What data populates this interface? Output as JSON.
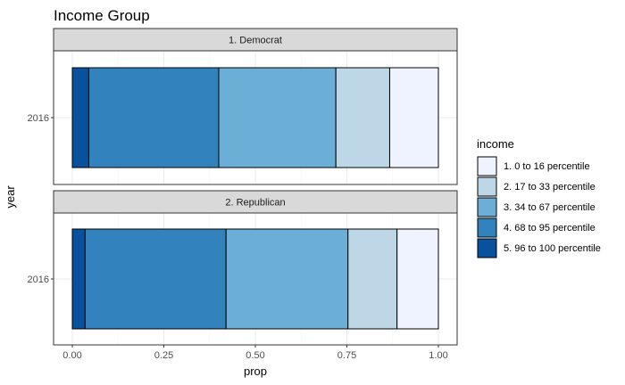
{
  "chart_data": {
    "type": "bar",
    "orientation": "horizontal",
    "stacked": true,
    "title": "Income Group",
    "xlabel": "prop",
    "ylabel": "year",
    "xlim": [
      0,
      1
    ],
    "x_ticks": [
      "0.00",
      "0.25",
      "0.50",
      "0.75",
      "1.00"
    ],
    "x_tick_values": [
      0,
      0.25,
      0.5,
      0.75,
      1.0
    ],
    "grid": true,
    "legend": {
      "title": "income",
      "placement": "right",
      "entries": [
        {
          "label": "1. 0 to 16 percentile",
          "color": "#eff3ff"
        },
        {
          "label": "2. 17 to 33 percentile",
          "color": "#bdd7e7"
        },
        {
          "label": "3. 34 to 67 percentile",
          "color": "#6baed6"
        },
        {
          "label": "4. 68 to 95 percentile",
          "color": "#3182bd"
        },
        {
          "label": "5. 96 to 100 percentile",
          "color": "#08519c"
        }
      ]
    },
    "facets": [
      {
        "label": "1. Democrat",
        "category": "2016",
        "segments": [
          {
            "group": "5. 96 to 100 percentile",
            "value": 0.045,
            "color": "#08519c"
          },
          {
            "group": "4. 68 to 95 percentile",
            "value": 0.355,
            "color": "#3182bd"
          },
          {
            "group": "3. 34 to 67 percentile",
            "value": 0.32,
            "color": "#6baed6"
          },
          {
            "group": "2. 17 to 33 percentile",
            "value": 0.147,
            "color": "#bdd7e7"
          },
          {
            "group": "1. 0 to 16 percentile",
            "value": 0.133,
            "color": "#eff3ff"
          }
        ]
      },
      {
        "label": "2. Republican",
        "category": "2016",
        "segments": [
          {
            "group": "5. 96 to 100 percentile",
            "value": 0.035,
            "color": "#08519c"
          },
          {
            "group": "4. 68 to 95 percentile",
            "value": 0.385,
            "color": "#3182bd"
          },
          {
            "group": "3. 34 to 67 percentile",
            "value": 0.333,
            "color": "#6baed6"
          },
          {
            "group": "2. 17 to 33 percentile",
            "value": 0.134,
            "color": "#bdd7e7"
          },
          {
            "group": "1. 0 to 16 percentile",
            "value": 0.113,
            "color": "#eff3ff"
          }
        ]
      }
    ]
  }
}
